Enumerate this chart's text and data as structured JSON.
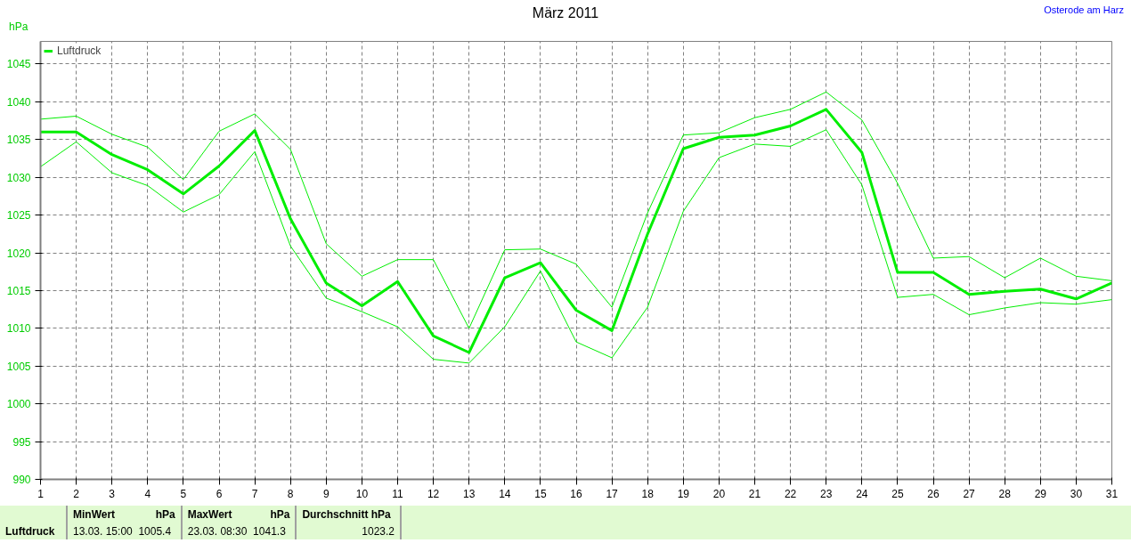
{
  "chart_data": {
    "type": "line",
    "title": "März 2011",
    "subtitle": "Osterode am Harz",
    "ylabel": "hPa",
    "x": [
      1,
      2,
      3,
      4,
      5,
      6,
      7,
      8,
      9,
      10,
      11,
      12,
      13,
      14,
      15,
      16,
      17,
      18,
      19,
      20,
      21,
      22,
      23,
      24,
      25,
      26,
      27,
      28,
      29,
      30,
      31
    ],
    "series": [
      {
        "name": "Luftdruck",
        "color": "#00ee00",
        "values": [
          1036,
          1036,
          1033,
          1031,
          1027.8,
          1031.5,
          1036.2,
          1024.5,
          1016,
          1013,
          1016.2,
          1009,
          1006.8,
          1016.7,
          1018.7,
          1012.4,
          1009.7,
          1022.5,
          1033.8,
          1035.3,
          1035.6,
          1036.8,
          1039,
          1033.3,
          1017.4,
          1017.4,
          1014.5,
          1014.9,
          1015.2,
          1013.9,
          1016
        ]
      },
      {
        "color": "#00ee00",
        "values": [
          1037.7,
          1038.1,
          1035.7,
          1034,
          1029.7,
          1036.1,
          1038.4,
          1033.7,
          1021.2,
          1016.9,
          1019.1,
          1019.1,
          1010,
          1020.4,
          1020.5,
          1018.5,
          1012.8,
          1025.3,
          1035.6,
          1035.9,
          1037.9,
          1039,
          1041.3,
          1037.6,
          1029.2,
          1019.3,
          1019.5,
          1016.7,
          1019.3,
          1016.9,
          1016.3
        ]
      },
      {
        "color": "#00ee00",
        "values": [
          1031.4,
          1034.7,
          1030.6,
          1028.9,
          1025.4,
          1027.7,
          1033.4,
          1020.9,
          1014,
          1012.2,
          1010.2,
          1005.9,
          1005.4,
          1010.2,
          1017.6,
          1008.2,
          1006.1,
          1012.8,
          1025.5,
          1032.6,
          1034.4,
          1034.1,
          1036.3,
          1029,
          1014.1,
          1014.5,
          1011.8,
          1012.7,
          1013.4,
          1013.2,
          1013.8
        ]
      }
    ],
    "xlim": [
      1,
      31
    ],
    "xticks": [
      1,
      2,
      3,
      4,
      5,
      6,
      7,
      8,
      9,
      10,
      11,
      12,
      13,
      14,
      15,
      16,
      17,
      18,
      19,
      20,
      21,
      22,
      23,
      24,
      25,
      26,
      27,
      28,
      29,
      30,
      31
    ],
    "ylim": [
      990,
      1048
    ],
    "yticks": [
      990,
      995,
      1000,
      1005,
      1010,
      1015,
      1020,
      1025,
      1030,
      1035,
      1040,
      1045
    ],
    "grid": true,
    "legend": "top left",
    "annotations": [
      "Luftdruck",
      "MinWert",
      "hPa",
      "13.03.  15:00",
      "1005.4",
      "MaxWert",
      "hPa",
      "23.03.  08:30",
      "1041.3",
      "Durchschnitt  hPa",
      "1023.2"
    ]
  }
}
